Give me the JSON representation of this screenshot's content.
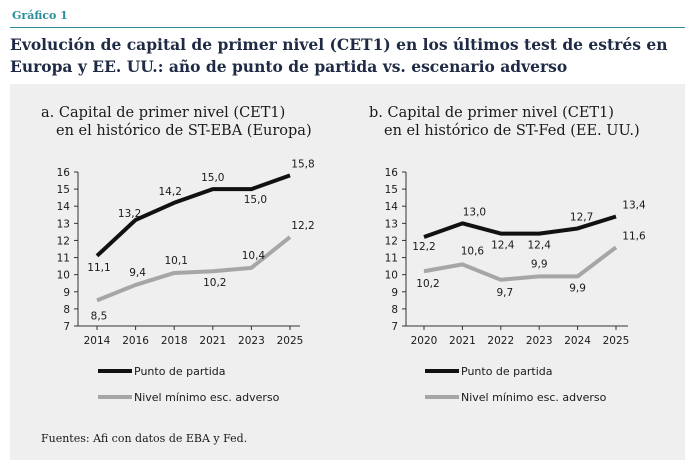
{
  "header": {
    "label": "Gráfico 1",
    "title": "Evolución de capital de primer nivel (CET1) en los últimos test de estrés en Europa y EE. UU.: año de punto de partida vs. escenario adverso"
  },
  "source": "Fuentes: Afi con datos de EBA y Fed.",
  "colors": {
    "accent": "#2a8f98",
    "title": "#1f2a44",
    "start_series": "#111111",
    "adverse_series": "#a6a6a6",
    "panel_bg": "#efefef"
  },
  "chart_data": [
    {
      "type": "line",
      "title_line1": "a. Capital de primer nivel (CET1)",
      "title_line2": "en el histórico de ST-EBA (Europa)",
      "categories": [
        "2014",
        "2016",
        "2018",
        "2021",
        "2023",
        "2025"
      ],
      "ylim": [
        7,
        16
      ],
      "yticks": [
        "7",
        "8",
        "9",
        "10",
        "11",
        "12",
        "13",
        "14",
        "15",
        "16"
      ],
      "series": [
        {
          "name": "Punto de partida",
          "values": [
            11.1,
            13.2,
            14.2,
            15.0,
            15.0,
            15.8
          ],
          "labels": [
            "11,1",
            "13,2",
            "14,2",
            "15,0",
            "15,0",
            "15,8"
          ]
        },
        {
          "name": "Nivel mínimo esc. adverso",
          "values": [
            8.5,
            9.4,
            10.1,
            10.2,
            10.4,
            12.2
          ],
          "labels": [
            "8,5",
            "9,4",
            "10,1",
            "10,2",
            "10,4",
            "12,2"
          ]
        }
      ],
      "legend": "bottom"
    },
    {
      "type": "line",
      "title_line1": "b. Capital de primer nivel (CET1)",
      "title_line2": "en el histórico de ST-Fed (EE. UU.)",
      "categories": [
        "2020",
        "2021",
        "2022",
        "2023",
        "2024",
        "2025"
      ],
      "ylim": [
        7,
        16
      ],
      "yticks": [
        "7",
        "8",
        "9",
        "10",
        "11",
        "12",
        "13",
        "14",
        "15",
        "16"
      ],
      "series": [
        {
          "name": "Punto de partida",
          "values": [
            12.2,
            13.0,
            12.4,
            12.4,
            12.7,
            13.4
          ],
          "labels": [
            "12,2",
            "13,0",
            "12,4",
            "12,4",
            "12,7",
            "13,4"
          ]
        },
        {
          "name": "Nivel mínimo esc. adverso",
          "values": [
            10.2,
            10.6,
            9.7,
            9.9,
            9.9,
            11.6
          ],
          "labels": [
            "10,2",
            "10,6",
            "9,7",
            "9,9",
            "9,9",
            "11,6"
          ]
        }
      ],
      "legend": "bottom"
    }
  ]
}
